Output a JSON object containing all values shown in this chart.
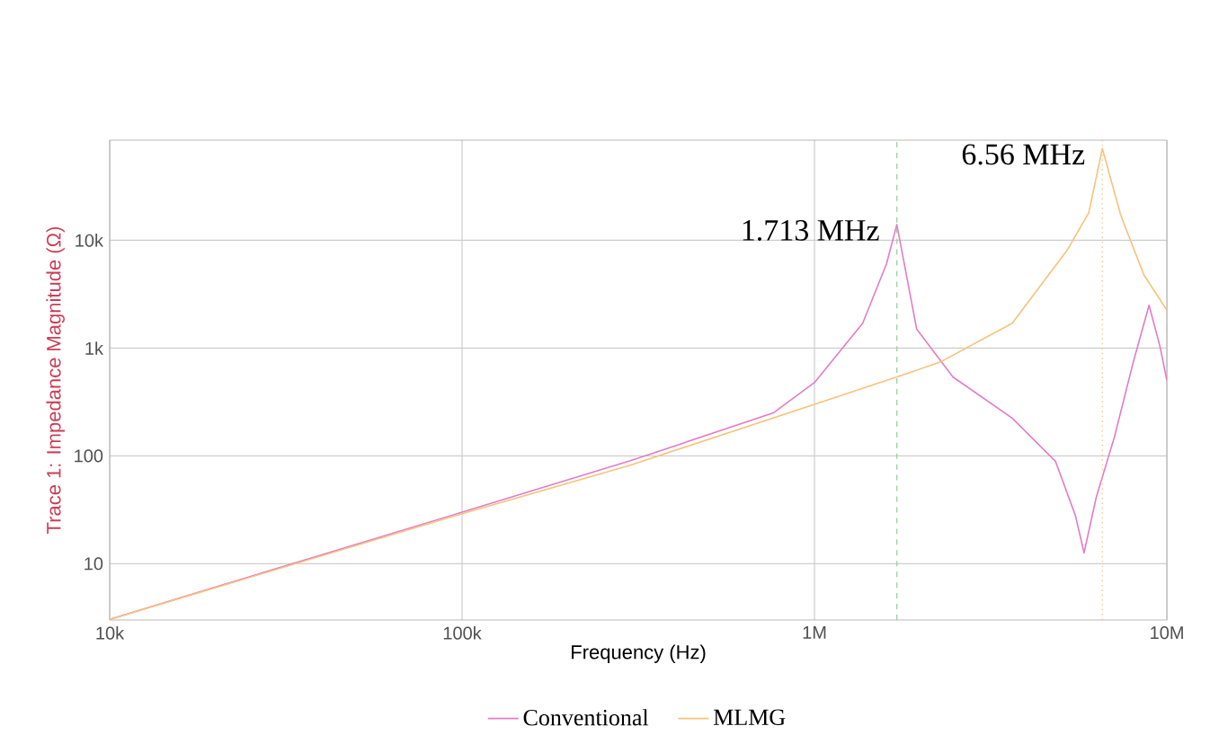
{
  "chart_data": {
    "type": "line",
    "xlabel": "Frequency (Hz)",
    "ylabel": "Trace 1: Impedance Magnitude (Ω)",
    "series": [
      {
        "name": "Conventional",
        "color": "#e37cc8",
        "x": [
          10000,
          30000,
          100000,
          300000,
          764000,
          1000000,
          1370000,
          1600000,
          1713000,
          1950000,
          2470000,
          3640000,
          4830000,
          5500000,
          5820000,
          6300000,
          7100000,
          8000000,
          8900000,
          9550000,
          10000000
        ],
        "values": [
          3.04,
          9.1,
          30,
          90,
          250,
          480,
          1700,
          6000,
          14000,
          1500,
          540,
          224,
          89,
          28,
          12.6,
          41,
          150,
          710,
          2500,
          1050,
          500
        ]
      },
      {
        "name": "MLMG",
        "color": "#f7c27a",
        "x": [
          10000,
          100000,
          300000,
          1000000,
          1713000,
          2270000,
          3640000,
          5200000,
          6000000,
          6560000,
          7400000,
          8600000,
          10000000
        ],
        "values": [
          3.04,
          29,
          82,
          300,
          540,
          740,
          1700,
          8000,
          18000,
          71000,
          17000,
          4800,
          2240
        ]
      }
    ],
    "xlim": [
      10000,
      10000000
    ],
    "ylim": [
      3,
      85000
    ],
    "xticks": [
      {
        "value": 10000,
        "label": "10k"
      },
      {
        "value": 100000,
        "label": "100k"
      },
      {
        "value": 1000000,
        "label": "1M"
      },
      {
        "value": 10000000,
        "label": "10M"
      }
    ],
    "yticks": [
      10,
      100,
      {
        "value": 1000,
        "label": "1k"
      },
      {
        "value": 10000,
        "label": "10k"
      }
    ],
    "log": "xy",
    "grid": true,
    "legend": "bottom",
    "ref_lines": [
      {
        "axis": "x",
        "value": 1713000,
        "color": "#9bd3a5",
        "line_style": "dashed"
      },
      {
        "axis": "x",
        "value": 6560000,
        "color": "#f5c58a",
        "line_style": "dotted"
      }
    ],
    "annotations": [
      {
        "text": "1.713 MHz",
        "x": 1713000,
        "y": 14000
      },
      {
        "text": "6.56 MHz",
        "x": 6560000,
        "y": 71000
      }
    ]
  }
}
